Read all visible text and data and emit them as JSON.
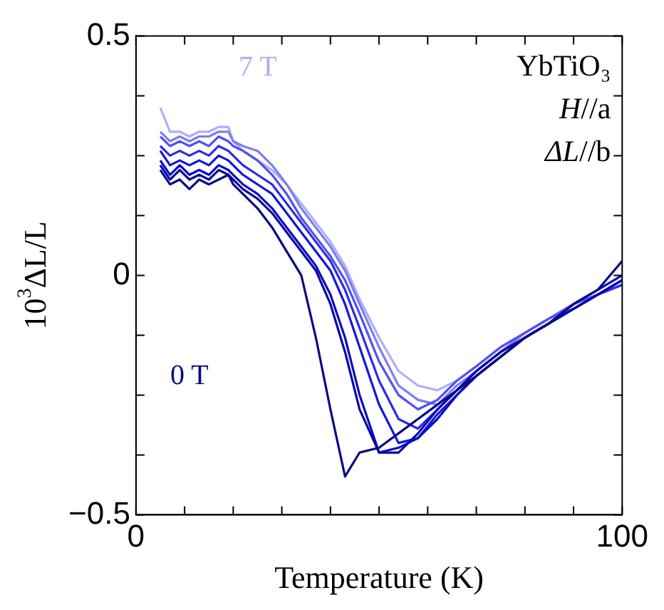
{
  "chart_data": {
    "type": "line",
    "xlabel": "Temperature (K)",
    "ylabel": "10$^{3}$ΔL/L",
    "x": [
      5,
      7,
      9,
      11,
      13,
      15,
      17,
      19,
      20,
      22,
      25,
      28,
      31,
      34,
      37,
      40,
      43,
      46,
      50,
      54,
      58,
      62,
      66,
      70,
      75,
      80,
      85,
      90,
      95,
      100
    ],
    "series": [
      {
        "name": "0 T",
        "color": "#0a0a82",
        "values": [
          0.22,
          0.19,
          0.2,
          0.18,
          0.2,
          0.19,
          0.2,
          0.21,
          0.19,
          0.17,
          0.14,
          0.1,
          0.05,
          0,
          -0.13,
          -0.28,
          -0.42,
          -0.37,
          -0.36,
          -0.33,
          -0.3,
          -0.27,
          -0.24,
          -0.21,
          -0.17,
          -0.13,
          -0.1,
          -0.06,
          -0.03,
          0.03
        ]
      },
      {
        "color": "#0808a8",
        "values": [
          0.23,
          0.2,
          0.22,
          0.2,
          0.21,
          0.2,
          0.22,
          0.21,
          0.2,
          0.18,
          0.16,
          0.13,
          0.09,
          0.05,
          0.01,
          -0.06,
          -0.16,
          -0.28,
          -0.37,
          -0.37,
          -0.33,
          -0.28,
          -0.24,
          -0.2,
          -0.16,
          -0.13,
          -0.1,
          -0.07,
          -0.04,
          -0.01
        ]
      },
      {
        "color": "#0c0cc4",
        "values": [
          0.24,
          0.21,
          0.23,
          0.21,
          0.22,
          0.21,
          0.23,
          0.22,
          0.21,
          0.19,
          0.17,
          0.14,
          0.1,
          0.06,
          0.02,
          -0.04,
          -0.13,
          -0.25,
          -0.37,
          -0.36,
          -0.34,
          -0.3,
          -0.25,
          -0.21,
          -0.17,
          -0.13,
          -0.1,
          -0.06,
          -0.03,
          0
        ]
      },
      {
        "color": "#1414dc",
        "values": [
          0.26,
          0.23,
          0.24,
          0.23,
          0.24,
          0.23,
          0.25,
          0.24,
          0.23,
          0.21,
          0.19,
          0.17,
          0.13,
          0.09,
          0.05,
          0.01,
          -0.06,
          -0.15,
          -0.27,
          -0.35,
          -0.34,
          -0.29,
          -0.25,
          -0.21,
          -0.17,
          -0.13,
          -0.1,
          -0.07,
          -0.04,
          -0.01
        ]
      },
      {
        "color": "#2a2aee",
        "values": [
          0.27,
          0.25,
          0.26,
          0.25,
          0.26,
          0.25,
          0.27,
          0.26,
          0.25,
          0.23,
          0.21,
          0.19,
          0.15,
          0.11,
          0.07,
          0.03,
          -0.03,
          -0.11,
          -0.22,
          -0.3,
          -0.32,
          -0.28,
          -0.24,
          -0.2,
          -0.16,
          -0.13,
          -0.1,
          -0.07,
          -0.04,
          -0.02
        ]
      },
      {
        "color": "#5050f2",
        "values": [
          0.29,
          0.27,
          0.28,
          0.27,
          0.28,
          0.27,
          0.29,
          0.28,
          0.27,
          0.26,
          0.24,
          0.21,
          0.17,
          0.12,
          0.08,
          0.04,
          -0.01,
          -0.08,
          -0.18,
          -0.25,
          -0.28,
          -0.26,
          -0.22,
          -0.19,
          -0.15,
          -0.12,
          -0.09,
          -0.06,
          -0.04,
          -0.01
        ]
      },
      {
        "color": "#7c7cf6",
        "values": [
          0.3,
          0.28,
          0.29,
          0.28,
          0.29,
          0.29,
          0.3,
          0.3,
          0.28,
          0.27,
          0.26,
          0.23,
          0.19,
          0.14,
          0.1,
          0.06,
          0.01,
          -0.06,
          -0.15,
          -0.23,
          -0.26,
          -0.27,
          -0.23,
          -0.2,
          -0.16,
          -0.12,
          -0.09,
          -0.07,
          -0.04,
          -0.02
        ]
      },
      {
        "name": "7 T",
        "color": "#aeaefa",
        "values": [
          0.35,
          0.3,
          0.3,
          0.29,
          0.3,
          0.3,
          0.31,
          0.31,
          0.28,
          0.26,
          0.24,
          0.22,
          0.19,
          0.15,
          0.11,
          0.07,
          0.02,
          -0.05,
          -0.13,
          -0.2,
          -0.23,
          -0.24,
          -0.22,
          -0.19,
          -0.15,
          -0.12,
          -0.09,
          -0.07,
          -0.04,
          -0.02
        ]
      }
    ],
    "xlim": [
      0,
      100
    ],
    "xticks": [
      0,
      {
        "value": 10,
        "label": null
      },
      {
        "value": 20,
        "label": null
      },
      {
        "value": 30,
        "label": null
      },
      {
        "value": 40,
        "label": null
      },
      {
        "value": 50,
        "label": null
      },
      {
        "value": 60,
        "label": null
      },
      {
        "value": 70,
        "label": null
      },
      {
        "value": 80,
        "label": null
      },
      {
        "value": 90,
        "label": null
      },
      100
    ],
    "ylim": [
      -0.5,
      0.5
    ],
    "yticks": [
      {
        "value": -0.5,
        "label": "−0.5"
      },
      {
        "value": -0.375,
        "label": null
      },
      {
        "value": -0.25,
        "label": null
      },
      {
        "value": -0.125,
        "label": null
      },
      0,
      {
        "value": 0.125,
        "label": null
      },
      {
        "value": 0.25,
        "label": null
      },
      {
        "value": 0.375,
        "label": null
      },
      0.5
    ],
    "annotations": [
      "YbTiO₃",
      "H//a",
      "ΔL//b"
    ],
    "marker": "none",
    "line_style": "solid",
    "legend": false,
    "grid": false
  }
}
